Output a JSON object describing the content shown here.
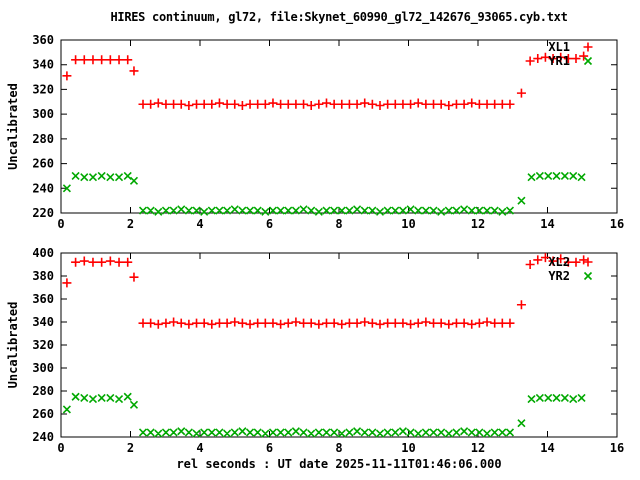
{
  "title": "HIRES continuum, gl72, file:Skynet_60990_gl72_142676_93065.cyb.txt",
  "xlabel": "rel seconds : UT date 2025-11-11T01:46:06.000",
  "colors": {
    "series_red": "#ff0000",
    "series_green": "#00a800",
    "text": "#000000",
    "background": "#ffffff",
    "border": "#000000"
  },
  "chart_data": [
    {
      "type": "scatter",
      "title": "",
      "ylabel": "Uncalibrated",
      "xlim": [
        0,
        16
      ],
      "ylim": [
        220,
        360
      ],
      "xticks": [
        0,
        2,
        4,
        6,
        8,
        10,
        12,
        14,
        16
      ],
      "yticks": [
        220,
        240,
        260,
        280,
        300,
        320,
        340,
        360
      ],
      "grid": false,
      "legend_position": "top-right",
      "series": [
        {
          "name": "XL1",
          "marker": "plus",
          "color": "#ff0000",
          "points": [
            [
              0.17,
              331
            ],
            [
              0.42,
              344
            ],
            [
              0.67,
              344
            ],
            [
              0.92,
              344
            ],
            [
              1.17,
              344
            ],
            [
              1.42,
              344
            ],
            [
              1.67,
              344
            ],
            [
              1.92,
              344
            ],
            [
              2.1,
              335
            ],
            [
              2.36,
              308
            ],
            [
              2.58,
              308
            ],
            [
              2.8,
              309
            ],
            [
              3.02,
              308
            ],
            [
              3.24,
              308
            ],
            [
              3.46,
              308
            ],
            [
              3.68,
              307
            ],
            [
              3.9,
              308
            ],
            [
              4.12,
              308
            ],
            [
              4.34,
              308
            ],
            [
              4.56,
              309
            ],
            [
              4.78,
              308
            ],
            [
              5,
              308
            ],
            [
              5.22,
              307
            ],
            [
              5.44,
              308
            ],
            [
              5.66,
              308
            ],
            [
              5.88,
              308
            ],
            [
              6.1,
              309
            ],
            [
              6.32,
              308
            ],
            [
              6.54,
              308
            ],
            [
              6.76,
              308
            ],
            [
              6.98,
              308
            ],
            [
              7.2,
              307
            ],
            [
              7.42,
              308
            ],
            [
              7.64,
              309
            ],
            [
              7.86,
              308
            ],
            [
              8.08,
              308
            ],
            [
              8.3,
              308
            ],
            [
              8.52,
              308
            ],
            [
              8.74,
              309
            ],
            [
              8.96,
              308
            ],
            [
              9.18,
              307
            ],
            [
              9.4,
              308
            ],
            [
              9.62,
              308
            ],
            [
              9.84,
              308
            ],
            [
              10.06,
              308
            ],
            [
              10.28,
              309
            ],
            [
              10.5,
              308
            ],
            [
              10.72,
              308
            ],
            [
              10.94,
              308
            ],
            [
              11.16,
              307
            ],
            [
              11.38,
              308
            ],
            [
              11.6,
              308
            ],
            [
              11.82,
              309
            ],
            [
              12.04,
              308
            ],
            [
              12.26,
              308
            ],
            [
              12.48,
              308
            ],
            [
              12.7,
              308
            ],
            [
              12.92,
              308
            ],
            [
              13.25,
              317
            ],
            [
              13.5,
              343
            ],
            [
              13.72,
              345
            ],
            [
              13.94,
              346
            ],
            [
              14.16,
              345
            ],
            [
              14.38,
              346
            ],
            [
              14.6,
              345
            ],
            [
              14.82,
              345
            ],
            [
              15.04,
              347
            ]
          ]
        },
        {
          "name": "YR1",
          "marker": "cross",
          "color": "#00a800",
          "points": [
            [
              0.17,
              240
            ],
            [
              0.42,
              250
            ],
            [
              0.67,
              249
            ],
            [
              0.92,
              249
            ],
            [
              1.17,
              250
            ],
            [
              1.42,
              249
            ],
            [
              1.67,
              249
            ],
            [
              1.92,
              250
            ],
            [
              2.1,
              246
            ],
            [
              2.36,
              222
            ],
            [
              2.58,
              222
            ],
            [
              2.8,
              221
            ],
            [
              3.02,
              222
            ],
            [
              3.24,
              222
            ],
            [
              3.46,
              223
            ],
            [
              3.68,
              222
            ],
            [
              3.9,
              222
            ],
            [
              4.12,
              221
            ],
            [
              4.34,
              222
            ],
            [
              4.56,
              222
            ],
            [
              4.78,
              222
            ],
            [
              5,
              223
            ],
            [
              5.22,
              222
            ],
            [
              5.44,
              222
            ],
            [
              5.66,
              222
            ],
            [
              5.88,
              221
            ],
            [
              6.1,
              222
            ],
            [
              6.32,
              222
            ],
            [
              6.54,
              222
            ],
            [
              6.76,
              222
            ],
            [
              6.98,
              223
            ],
            [
              7.2,
              222
            ],
            [
              7.42,
              221
            ],
            [
              7.64,
              222
            ],
            [
              7.86,
              222
            ],
            [
              8.08,
              222
            ],
            [
              8.3,
              222
            ],
            [
              8.52,
              223
            ],
            [
              8.74,
              222
            ],
            [
              8.96,
              222
            ],
            [
              9.18,
              221
            ],
            [
              9.4,
              222
            ],
            [
              9.62,
              222
            ],
            [
              9.84,
              222
            ],
            [
              10.06,
              223
            ],
            [
              10.28,
              222
            ],
            [
              10.5,
              222
            ],
            [
              10.72,
              222
            ],
            [
              10.94,
              221
            ],
            [
              11.16,
              222
            ],
            [
              11.38,
              222
            ],
            [
              11.6,
              223
            ],
            [
              11.82,
              222
            ],
            [
              12.04,
              222
            ],
            [
              12.26,
              222
            ],
            [
              12.48,
              222
            ],
            [
              12.7,
              221
            ],
            [
              12.92,
              222
            ],
            [
              13.25,
              230
            ],
            [
              13.54,
              249
            ],
            [
              13.78,
              250
            ],
            [
              14.02,
              250
            ],
            [
              14.26,
              250
            ],
            [
              14.5,
              250
            ],
            [
              14.74,
              250
            ],
            [
              14.98,
              249
            ]
          ]
        }
      ]
    },
    {
      "type": "scatter",
      "title": "",
      "ylabel": "Uncalibrated",
      "xlim": [
        0,
        16
      ],
      "ylim": [
        240,
        400
      ],
      "xticks": [
        0,
        2,
        4,
        6,
        8,
        10,
        12,
        14,
        16
      ],
      "yticks": [
        240,
        260,
        280,
        300,
        320,
        340,
        360,
        380,
        400
      ],
      "grid": false,
      "legend_position": "top-right",
      "series": [
        {
          "name": "XL2",
          "marker": "plus",
          "color": "#ff0000",
          "points": [
            [
              0.17,
              374
            ],
            [
              0.42,
              392
            ],
            [
              0.67,
              393
            ],
            [
              0.92,
              392
            ],
            [
              1.17,
              392
            ],
            [
              1.42,
              393
            ],
            [
              1.67,
              392
            ],
            [
              1.92,
              392
            ],
            [
              2.1,
              379
            ],
            [
              2.36,
              339
            ],
            [
              2.58,
              339
            ],
            [
              2.8,
              338
            ],
            [
              3.02,
              339
            ],
            [
              3.24,
              340
            ],
            [
              3.46,
              339
            ],
            [
              3.68,
              338
            ],
            [
              3.9,
              339
            ],
            [
              4.12,
              339
            ],
            [
              4.34,
              338
            ],
            [
              4.56,
              339
            ],
            [
              4.78,
              339
            ],
            [
              5,
              340
            ],
            [
              5.22,
              339
            ],
            [
              5.44,
              338
            ],
            [
              5.66,
              339
            ],
            [
              5.88,
              339
            ],
            [
              6.1,
              339
            ],
            [
              6.32,
              338
            ],
            [
              6.54,
              339
            ],
            [
              6.76,
              340
            ],
            [
              6.98,
              339
            ],
            [
              7.2,
              339
            ],
            [
              7.42,
              338
            ],
            [
              7.64,
              339
            ],
            [
              7.86,
              339
            ],
            [
              8.08,
              338
            ],
            [
              8.3,
              339
            ],
            [
              8.52,
              339
            ],
            [
              8.74,
              340
            ],
            [
              8.96,
              339
            ],
            [
              9.18,
              338
            ],
            [
              9.4,
              339
            ],
            [
              9.62,
              339
            ],
            [
              9.84,
              339
            ],
            [
              10.06,
              338
            ],
            [
              10.28,
              339
            ],
            [
              10.5,
              340
            ],
            [
              10.72,
              339
            ],
            [
              10.94,
              339
            ],
            [
              11.16,
              338
            ],
            [
              11.38,
              339
            ],
            [
              11.6,
              339
            ],
            [
              11.82,
              338
            ],
            [
              12.04,
              339
            ],
            [
              12.26,
              340
            ],
            [
              12.48,
              339
            ],
            [
              12.7,
              339
            ],
            [
              12.92,
              339
            ],
            [
              13.25,
              355
            ],
            [
              13.5,
              390
            ],
            [
              13.72,
              394
            ],
            [
              13.94,
              396
            ],
            [
              14.16,
              393
            ],
            [
              14.38,
              395
            ],
            [
              14.6,
              392
            ],
            [
              14.82,
              392
            ],
            [
              15.04,
              394
            ]
          ]
        },
        {
          "name": "YR2",
          "marker": "cross",
          "color": "#00a800",
          "points": [
            [
              0.17,
              264
            ],
            [
              0.42,
              275
            ],
            [
              0.67,
              274
            ],
            [
              0.92,
              273
            ],
            [
              1.17,
              274
            ],
            [
              1.42,
              274
            ],
            [
              1.67,
              273
            ],
            [
              1.92,
              275
            ],
            [
              2.1,
              268
            ],
            [
              2.36,
              244
            ],
            [
              2.58,
              244
            ],
            [
              2.8,
              243
            ],
            [
              3.02,
              244
            ],
            [
              3.24,
              244
            ],
            [
              3.46,
              245
            ],
            [
              3.68,
              244
            ],
            [
              3.9,
              243
            ],
            [
              4.12,
              244
            ],
            [
              4.34,
              244
            ],
            [
              4.56,
              244
            ],
            [
              4.78,
              243
            ],
            [
              5,
              244
            ],
            [
              5.22,
              245
            ],
            [
              5.44,
              244
            ],
            [
              5.66,
              244
            ],
            [
              5.88,
              243
            ],
            [
              6.1,
              244
            ],
            [
              6.32,
              244
            ],
            [
              6.54,
              244
            ],
            [
              6.76,
              245
            ],
            [
              6.98,
              244
            ],
            [
              7.2,
              243
            ],
            [
              7.42,
              244
            ],
            [
              7.64,
              244
            ],
            [
              7.86,
              244
            ],
            [
              8.08,
              243
            ],
            [
              8.3,
              244
            ],
            [
              8.52,
              245
            ],
            [
              8.74,
              244
            ],
            [
              8.96,
              244
            ],
            [
              9.18,
              243
            ],
            [
              9.4,
              244
            ],
            [
              9.62,
              244
            ],
            [
              9.84,
              245
            ],
            [
              10.06,
              244
            ],
            [
              10.28,
              243
            ],
            [
              10.5,
              244
            ],
            [
              10.72,
              244
            ],
            [
              10.94,
              244
            ],
            [
              11.16,
              243
            ],
            [
              11.38,
              244
            ],
            [
              11.6,
              245
            ],
            [
              11.82,
              244
            ],
            [
              12.04,
              244
            ],
            [
              12.26,
              243
            ],
            [
              12.48,
              244
            ],
            [
              12.7,
              244
            ],
            [
              12.92,
              244
            ],
            [
              13.25,
              252
            ],
            [
              13.54,
              273
            ],
            [
              13.78,
              274
            ],
            [
              14.02,
              274
            ],
            [
              14.26,
              274
            ],
            [
              14.5,
              274
            ],
            [
              14.74,
              273
            ],
            [
              14.98,
              274
            ]
          ]
        }
      ]
    }
  ]
}
